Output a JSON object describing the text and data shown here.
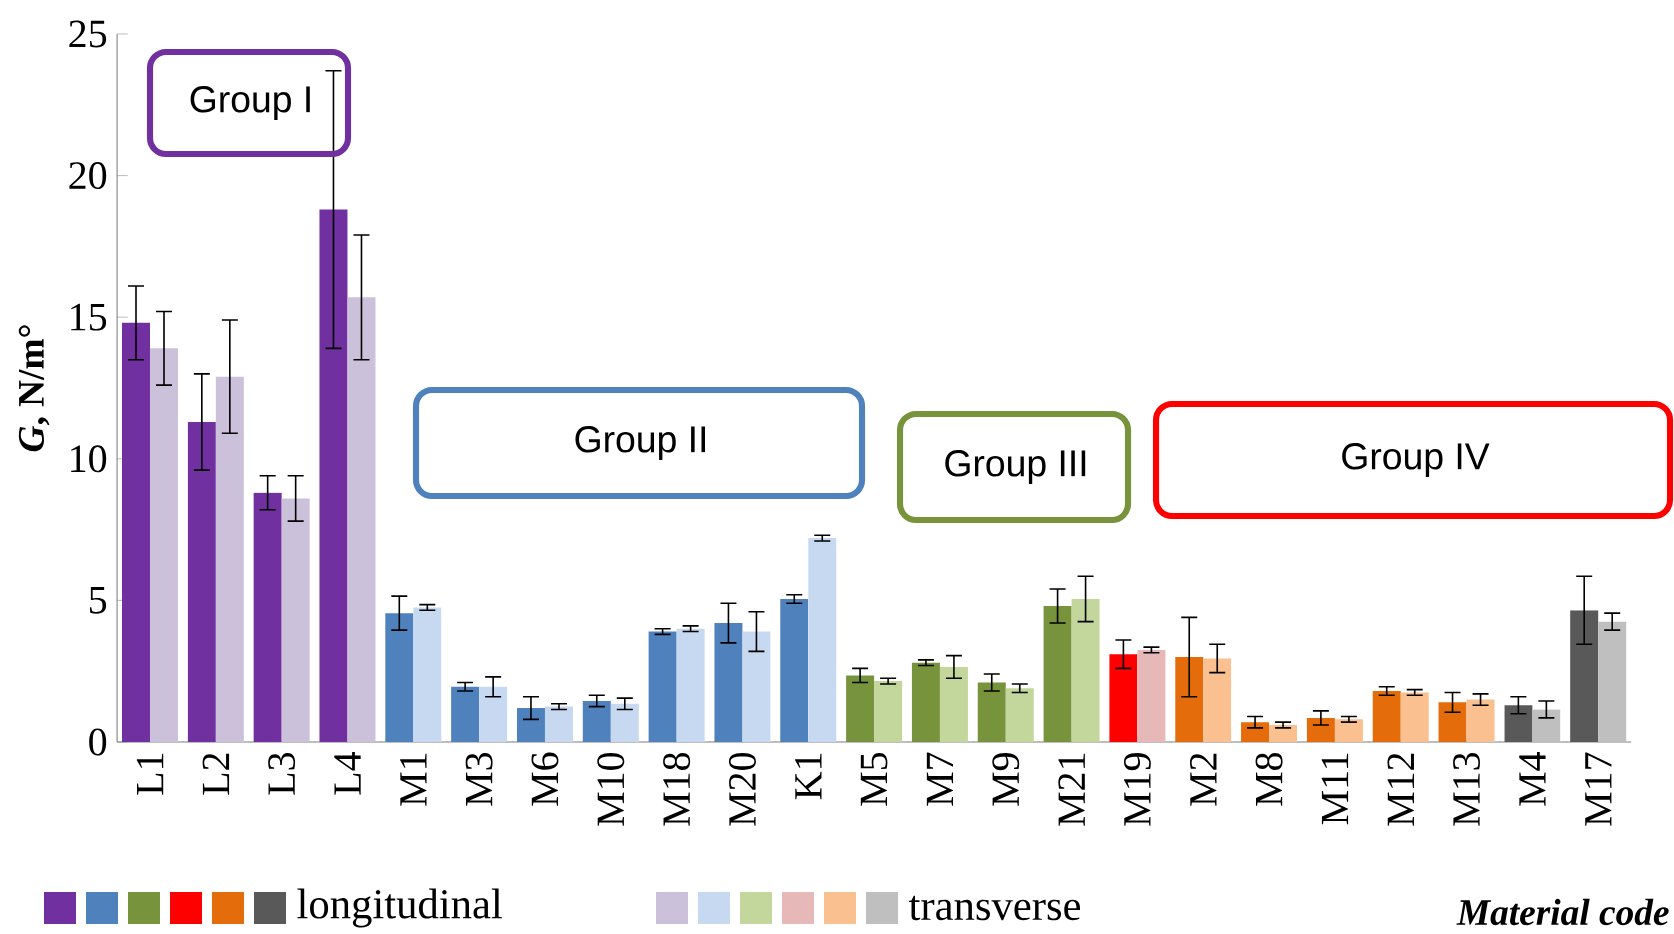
{
  "chart_data": {
    "type": "bar",
    "xlabel": "Material code",
    "ylabel": "*G*, N/m°",
    "categories": [
      "L1",
      "L2",
      "L3",
      "L4",
      "M1",
      "M3",
      "M6",
      "M10",
      "M18",
      "M20",
      "K1",
      "M5",
      "M7",
      "M9",
      "M21",
      "M19",
      "M2",
      "M8",
      "M11",
      "M12",
      "M13",
      "M4",
      "M17"
    ],
    "series": [
      {
        "name": "longitudinal",
        "colors": [
          "#7030a0",
          "#7030a0",
          "#7030a0",
          "#7030a0",
          "#4f81bd",
          "#4f81bd",
          "#4f81bd",
          "#4f81bd",
          "#4f81bd",
          "#4f81bd",
          "#4f81bd",
          "#77933c",
          "#77933c",
          "#77933c",
          "#77933c",
          "#ff0000",
          "#e46c0a",
          "#e46c0a",
          "#e46c0a",
          "#e46c0a",
          "#e46c0a",
          "#595959",
          "#595959"
        ],
        "values": [
          14.8,
          11.3,
          8.8,
          18.8,
          4.55,
          1.95,
          1.2,
          1.45,
          3.9,
          4.2,
          5.05,
          2.35,
          2.8,
          2.1,
          4.8,
          3.1,
          3.0,
          0.7,
          0.85,
          1.8,
          1.4,
          1.3,
          4.65
        ],
        "errors": [
          1.3,
          1.7,
          0.6,
          4.9,
          0.6,
          0.15,
          0.4,
          0.2,
          0.1,
          0.7,
          0.15,
          0.25,
          0.1,
          0.3,
          0.6,
          0.5,
          1.4,
          0.2,
          0.25,
          0.15,
          0.35,
          0.3,
          1.2
        ]
      },
      {
        "name": "transverse",
        "colors": [
          "#ccc1da",
          "#ccc1da",
          "#ccc1da",
          "#ccc1da",
          "#c6d9f1",
          "#c6d9f1",
          "#c6d9f1",
          "#c6d9f1",
          "#c6d9f1",
          "#c6d9f1",
          "#c6d9f1",
          "#c3d69b",
          "#c3d69b",
          "#c3d69b",
          "#c3d69b",
          "#e6b9b8",
          "#fac090",
          "#fac090",
          "#fac090",
          "#fac090",
          "#fac090",
          "#bfbfbf",
          "#bfbfbf"
        ],
        "values": [
          13.9,
          12.9,
          8.6,
          15.7,
          4.75,
          1.95,
          1.25,
          1.35,
          4.0,
          3.9,
          7.2,
          2.15,
          2.65,
          1.9,
          5.05,
          3.25,
          2.95,
          0.6,
          0.8,
          1.75,
          1.5,
          1.15,
          4.25
        ],
        "errors": [
          1.3,
          2.0,
          0.8,
          2.2,
          0.1,
          0.35,
          0.1,
          0.2,
          0.1,
          0.7,
          0.1,
          0.1,
          0.4,
          0.15,
          0.8,
          0.1,
          0.5,
          0.1,
          0.1,
          0.1,
          0.2,
          0.3,
          0.3
        ]
      }
    ],
    "annotations": [
      "Group I",
      "Group II",
      "Group III",
      "Group IV"
    ],
    "ylim": [
      0,
      25
    ],
    "yticks": [
      0,
      5,
      10,
      15,
      20,
      25
    ],
    "grid": false,
    "legend": "bottom"
  }
}
